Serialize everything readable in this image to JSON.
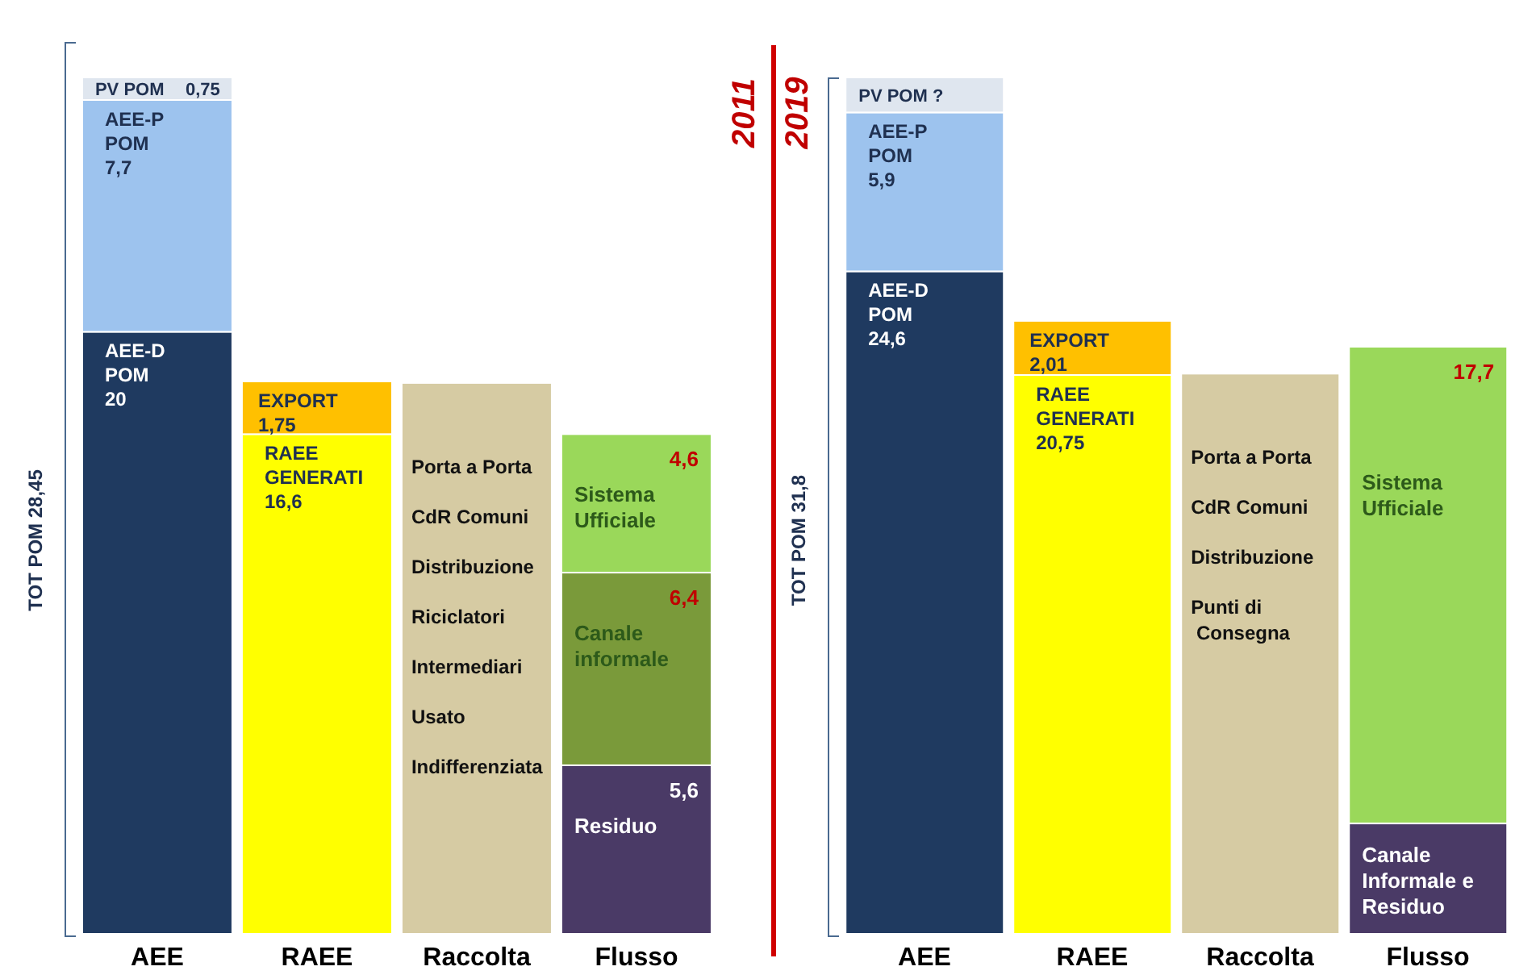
{
  "chart_data": [
    {
      "type": "bar",
      "title": "2011",
      "ylabel": "TOT POM 28,45",
      "stacked": true,
      "legend": false,
      "categories": [
        "AEE",
        "RAEE",
        "Raccolta",
        "Flusso"
      ],
      "series": [
        {
          "name": "AEE-D POM",
          "color": "#1f3a60",
          "values": [
            20,
            null,
            null,
            null
          ],
          "value_labels": [
            "20",
            null,
            null,
            null
          ]
        },
        {
          "name": "AEE-P POM",
          "color": "#9dc3ee",
          "values": [
            7.7,
            null,
            null,
            null
          ],
          "value_labels": [
            "7,7",
            null,
            null,
            null
          ]
        },
        {
          "name": "PV POM",
          "color": "#dfe6ef",
          "values": [
            0.75,
            null,
            null,
            null
          ],
          "value_labels": [
            "0,75",
            null,
            null,
            null
          ]
        },
        {
          "name": "RAEE GENERATI",
          "color": "#ffff00",
          "values": [
            null,
            16.6,
            null,
            null
          ],
          "value_labels": [
            null,
            "16,6",
            null,
            null
          ]
        },
        {
          "name": "EXPORT",
          "color": "#ffc000",
          "values": [
            null,
            1.75,
            null,
            null
          ],
          "value_labels": [
            null,
            "1,75",
            null,
            null
          ]
        },
        {
          "color": "#d6cba3",
          "values": [
            null,
            null,
            18.3,
            null
          ]
        },
        {
          "name": "Residuo",
          "color": "#4a3a66",
          "values": [
            null,
            null,
            null,
            5.6
          ],
          "value_labels": [
            null,
            null,
            null,
            "5,6"
          ]
        },
        {
          "name": "Canale informale",
          "color": "#7a9a3a",
          "values": [
            null,
            null,
            null,
            6.4
          ],
          "value_labels": [
            null,
            null,
            null,
            "6,4"
          ]
        },
        {
          "name": "Sistema Ufficiale",
          "color": "#9ad85a",
          "values": [
            null,
            null,
            null,
            4.6
          ],
          "value_labels": [
            null,
            null,
            null,
            "4,6"
          ]
        }
      ],
      "annotations": [
        "Porta a Porta",
        "CdR Comuni",
        "Distribuzione",
        "Riciclatori",
        "Intermediari",
        "Usato",
        "Indifferenziata"
      ]
    },
    {
      "type": "bar",
      "title": "2019",
      "ylabel": "TOT POM 31,8",
      "stacked": true,
      "legend": false,
      "categories": [
        "AEE",
        "RAEE",
        "Raccolta",
        "Flusso"
      ],
      "series": [
        {
          "name": "AEE-D POM",
          "color": "#1f3a60",
          "values": [
            24.6,
            null,
            null,
            null
          ],
          "value_labels": [
            "24,6",
            null,
            null,
            null
          ]
        },
        {
          "name": "AEE-P POM",
          "color": "#9dc3ee",
          "values": [
            5.9,
            null,
            null,
            null
          ],
          "value_labels": [
            "5,9",
            null,
            null,
            null
          ]
        },
        {
          "name": "PV POM ?",
          "color": "#dfe6ef",
          "values": [
            1.3,
            null,
            null,
            null
          ]
        },
        {
          "name": "RAEE GENERATI",
          "color": "#ffff00",
          "values": [
            null,
            20.75,
            null,
            null
          ],
          "value_labels": [
            null,
            "20,75",
            null,
            null
          ]
        },
        {
          "name": "EXPORT",
          "color": "#ffc000",
          "values": [
            null,
            2.01,
            null,
            null
          ],
          "value_labels": [
            null,
            "2,01",
            null,
            null
          ]
        },
        {
          "color": "#d6cba3",
          "values": [
            null,
            null,
            20.8,
            null
          ]
        },
        {
          "name": "Canale Informale e Residuo",
          "color": "#4a3a66",
          "values": [
            null,
            null,
            null,
            4.1
          ]
        },
        {
          "name": "Sistema Ufficiale",
          "color": "#9ad85a",
          "values": [
            null,
            null,
            null,
            17.7
          ],
          "value_labels": [
            null,
            null,
            null,
            "17,7"
          ]
        }
      ],
      "annotations": [
        "Porta a Porta",
        "CdR Comuni",
        "Distribuzione",
        "Punti di Consegna"
      ]
    }
  ]
}
